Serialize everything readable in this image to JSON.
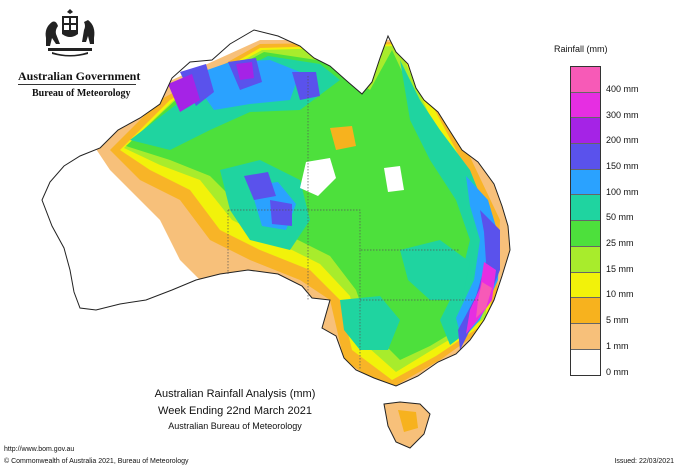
{
  "header": {
    "government": "Australian Government",
    "bureau": "Bureau of Meteorology"
  },
  "legend": {
    "title": "Rainfall (mm)",
    "bands": [
      {
        "label": "400 mm",
        "color": "#f75ab7"
      },
      {
        "label": "300 mm",
        "color": "#e62ee2"
      },
      {
        "label": "200 mm",
        "color": "#a523e6"
      },
      {
        "label": "150 mm",
        "color": "#5a52ec"
      },
      {
        "label": "100 mm",
        "color": "#2aa2ff"
      },
      {
        "label": "50 mm",
        "color": "#1fd4a0"
      },
      {
        "label": "25 mm",
        "color": "#4de03c"
      },
      {
        "label": "15 mm",
        "color": "#a8ec2c"
      },
      {
        "label": "10 mm",
        "color": "#f2f20a"
      },
      {
        "label": "5 mm",
        "color": "#f7b21e"
      },
      {
        "label": "1 mm",
        "color": "#f7c07a"
      },
      {
        "label": "0 mm",
        "color": "#ffffff"
      }
    ]
  },
  "caption": {
    "line1": "Australian Rainfall Analysis (mm)",
    "line2": "Week Ending 22nd March 2021",
    "line3": "Australian Bureau of Meteorology"
  },
  "footer": {
    "url": "http://www.bom.gov.au",
    "copyright": "© Commonwealth of Australia 2021, Bureau of Meteorology",
    "issued": "Issued: 22/03/2021"
  }
}
